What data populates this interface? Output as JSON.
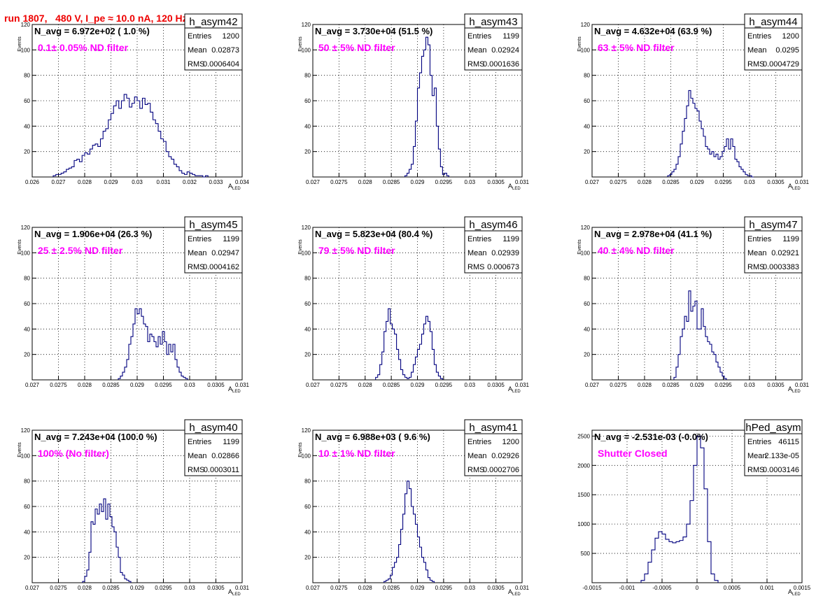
{
  "page": {
    "title": "run 1807,   480 V, I_pe ≈ 10.0 nA, 120 Hz"
  },
  "colors": {
    "histogram": "#00007f",
    "annotation": "#ff00ff",
    "title": "#ee0000",
    "grid": "#000000"
  },
  "chart_data": [
    {
      "type": "histogram",
      "name": "h_asym42",
      "navg": "N_avg = 6.972e+02 ( 1.0 %)",
      "filter": "0.1± 0.05% ND filter",
      "stats": [
        [
          "Entries",
          "1200"
        ],
        [
          "Mean",
          "0.02873"
        ],
        [
          "RMS",
          "0.0006404"
        ]
      ],
      "xlabel": "A",
      "xlabel_sub": "LED",
      "ylabel": "Events",
      "xlim": [
        0.026,
        0.034
      ],
      "ylim": [
        0,
        120
      ],
      "xticks": [
        [
          "0.026",
          0.026
        ],
        [
          "0.027",
          0.027
        ],
        [
          "0.028",
          0.028
        ],
        [
          "0.029",
          0.029
        ],
        [
          "0.03",
          0.03
        ],
        [
          "0.031",
          0.031
        ],
        [
          "0.032",
          0.032
        ],
        [
          "0.033",
          0.033
        ],
        [
          "0.034",
          0.034
        ]
      ],
      "yticks": [
        20,
        40,
        60,
        80,
        100,
        120
      ],
      "bins_x0": 0.0268,
      "bin_w": 0.0001,
      "values": [
        1,
        2,
        2,
        3,
        4,
        6,
        7,
        8,
        13,
        14,
        12,
        17,
        19,
        18,
        22,
        25,
        26,
        24,
        30,
        36,
        38,
        45,
        50,
        56,
        60,
        54,
        60,
        65,
        62,
        55,
        58,
        63,
        60,
        54,
        62,
        57,
        58,
        51,
        45,
        42,
        36,
        30,
        28,
        20,
        16,
        14,
        10,
        8,
        5,
        3,
        2,
        4,
        3,
        2,
        1,
        1,
        1,
        0,
        1
      ]
    },
    {
      "type": "histogram",
      "name": "h_asym43",
      "navg": "N_avg = 3.730e+04 (51.5 %)",
      "filter": "50 ± 5% ND filter",
      "stats": [
        [
          "Entries",
          "1199"
        ],
        [
          "Mean",
          "0.02924"
        ],
        [
          "RMS",
          "0.0001636"
        ]
      ],
      "xlabel": "A",
      "xlabel_sub": "LED",
      "ylabel": "Events",
      "xlim": [
        0.027,
        0.031
      ],
      "ylim": [
        0,
        120
      ],
      "xticks": [
        [
          "0.027",
          0.027
        ],
        [
          "0.0275",
          0.0275
        ],
        [
          "0.028",
          0.028
        ],
        [
          "0.0285",
          0.0285
        ],
        [
          "0.029",
          0.029
        ],
        [
          "0.0295",
          0.0295
        ],
        [
          "0.03",
          0.03
        ],
        [
          "0.0305",
          0.0305
        ],
        [
          "0.031",
          0.031
        ]
      ],
      "yticks": [
        20,
        40,
        60,
        80,
        100,
        120
      ],
      "bins_x0": 0.02876,
      "bin_w": 4e-05,
      "values": [
        1,
        3,
        6,
        10,
        24,
        44,
        70,
        82,
        95,
        100,
        110,
        104,
        80,
        64,
        70,
        40,
        22,
        8,
        2,
        3,
        1
      ]
    },
    {
      "type": "histogram",
      "name": "h_asym44",
      "navg": "N_avg = 4.632e+04 (63.9 %)",
      "filter": "63 ± 5% ND filter",
      "stats": [
        [
          "Entries",
          "1200"
        ],
        [
          "Mean",
          "0.0295"
        ],
        [
          "RMS",
          "0.0004729"
        ]
      ],
      "xlabel": "A",
      "xlabel_sub": "LED",
      "ylabel": "Events",
      "xlim": [
        0.027,
        0.031
      ],
      "ylim": [
        0,
        120
      ],
      "xticks": [
        [
          "0.027",
          0.027
        ],
        [
          "0.0275",
          0.0275
        ],
        [
          "0.028",
          0.028
        ],
        [
          "0.0285",
          0.0285
        ],
        [
          "0.029",
          0.029
        ],
        [
          "0.0295",
          0.0295
        ],
        [
          "0.03",
          0.03
        ],
        [
          "0.0305",
          0.0305
        ],
        [
          "0.031",
          0.031
        ]
      ],
      "yticks": [
        20,
        40,
        60,
        80,
        100,
        120
      ],
      "bins_x0": 0.02844,
      "bin_w": 4e-05,
      "values": [
        1,
        2,
        4,
        6,
        10,
        16,
        26,
        36,
        46,
        56,
        68,
        62,
        58,
        54,
        52,
        44,
        38,
        32,
        24,
        22,
        18,
        20,
        16,
        18,
        14,
        16,
        20,
        24,
        30,
        22,
        30,
        24,
        14,
        12,
        8,
        6,
        4,
        2,
        1,
        1,
        0
      ]
    },
    {
      "type": "histogram",
      "name": "h_asym45",
      "navg": "N_avg = 1.906e+04 (26.3 %)",
      "filter": "25 ± 2.5% ND filter",
      "stats": [
        [
          "Entries",
          "1199"
        ],
        [
          "Mean",
          "0.02947"
        ],
        [
          "RMS",
          "0.0004162"
        ]
      ],
      "xlabel": "A",
      "xlabel_sub": "LED",
      "ylabel": "Events",
      "xlim": [
        0.027,
        0.031
      ],
      "ylim": [
        0,
        120
      ],
      "xticks": [
        [
          "0.027",
          0.027
        ],
        [
          "0.0275",
          0.0275
        ],
        [
          "0.028",
          0.028
        ],
        [
          "0.0285",
          0.0285
        ],
        [
          "0.029",
          0.029
        ],
        [
          "0.0295",
          0.0295
        ],
        [
          "0.03",
          0.03
        ],
        [
          "0.0305",
          0.0305
        ],
        [
          "0.031",
          0.031
        ]
      ],
      "yticks": [
        20,
        40,
        60,
        80,
        100,
        120
      ],
      "bins_x0": 0.02864,
      "bin_w": 4e-05,
      "values": [
        1,
        3,
        6,
        10,
        16,
        28,
        34,
        44,
        56,
        52,
        56,
        50,
        44,
        42,
        30,
        36,
        34,
        30,
        26,
        34,
        28,
        38,
        30,
        20,
        28,
        22,
        28,
        16,
        10,
        6,
        3,
        2,
        1
      ]
    },
    {
      "type": "histogram",
      "name": "h_asym46",
      "navg": "N_avg = 5.823e+04 (80.4 %)",
      "filter": "79 ± 5% ND filter",
      "stats": [
        [
          "Entries",
          "1199"
        ],
        [
          "Mean",
          "0.02939"
        ],
        [
          "RMS",
          "0.000673"
        ]
      ],
      "xlabel": "A",
      "xlabel_sub": "LED",
      "ylabel": "Events",
      "xlim": [
        0.027,
        0.031
      ],
      "ylim": [
        0,
        120
      ],
      "xticks": [
        [
          "0.027",
          0.027
        ],
        [
          "0.0275",
          0.0275
        ],
        [
          "0.028",
          0.028
        ],
        [
          "0.0285",
          0.0285
        ],
        [
          "0.029",
          0.029
        ],
        [
          "0.0295",
          0.0295
        ],
        [
          "0.03",
          0.03
        ],
        [
          "0.0305",
          0.0305
        ],
        [
          "0.031",
          0.031
        ]
      ],
      "yticks": [
        20,
        40,
        60,
        80,
        100,
        120
      ],
      "bins_x0": 0.0282,
      "bin_w": 4e-05,
      "values": [
        2,
        4,
        12,
        22,
        38,
        46,
        56,
        44,
        40,
        36,
        24,
        16,
        8,
        4,
        2,
        1,
        2,
        6,
        12,
        18,
        24,
        28,
        36,
        44,
        50,
        46,
        38,
        24,
        12,
        6,
        3,
        1
      ]
    },
    {
      "type": "histogram",
      "name": "h_asym47",
      "navg": "N_avg = 2.978e+04 (41.1 %)",
      "filter": "40 ± 4% ND filter",
      "stats": [
        [
          "Entries",
          "1199"
        ],
        [
          "Mean",
          "0.02921"
        ],
        [
          "RMS",
          "0.0003383"
        ]
      ],
      "xlabel": "A",
      "xlabel_sub": "LED",
      "ylabel": "Events",
      "xlim": [
        0.027,
        0.031
      ],
      "ylim": [
        0,
        120
      ],
      "xticks": [
        [
          "0.027",
          0.027
        ],
        [
          "0.0275",
          0.0275
        ],
        [
          "0.028",
          0.028
        ],
        [
          "0.0285",
          0.0285
        ],
        [
          "0.029",
          0.029
        ],
        [
          "0.0295",
          0.0295
        ],
        [
          "0.03",
          0.03
        ],
        [
          "0.0305",
          0.0305
        ],
        [
          "0.031",
          0.031
        ]
      ],
      "yticks": [
        20,
        40,
        60,
        80,
        100,
        120
      ],
      "bins_x0": 0.02856,
      "bin_w": 4e-05,
      "values": [
        2,
        10,
        20,
        34,
        40,
        50,
        46,
        70,
        54,
        58,
        62,
        40,
        40,
        56,
        42,
        34,
        30,
        28,
        22,
        20,
        14,
        10,
        6,
        3,
        1
      ]
    },
    {
      "type": "histogram",
      "name": "h_asym40",
      "navg": "N_avg = 7.243e+04 (100.0 %)",
      "filter": "100% (No filter)",
      "stats": [
        [
          "Entries",
          "1199"
        ],
        [
          "Mean",
          "0.02866"
        ],
        [
          "RMS",
          "0.0003011"
        ]
      ],
      "xlabel": "A",
      "xlabel_sub": "LED",
      "ylabel": "Events",
      "xlim": [
        0.027,
        0.031
      ],
      "ylim": [
        0,
        120
      ],
      "xticks": [
        [
          "0.027",
          0.027
        ],
        [
          "0.0275",
          0.0275
        ],
        [
          "0.028",
          0.028
        ],
        [
          "0.0285",
          0.0285
        ],
        [
          "0.029",
          0.029
        ],
        [
          "0.0295",
          0.0295
        ],
        [
          "0.03",
          0.03
        ],
        [
          "0.0305",
          0.0305
        ],
        [
          "0.031",
          0.031
        ]
      ],
      "yticks": [
        20,
        40,
        60,
        80,
        100,
        120
      ],
      "bins_x0": 0.02796,
      "bin_w": 4e-05,
      "values": [
        1,
        5,
        10,
        24,
        48,
        46,
        58,
        54,
        62,
        56,
        66,
        50,
        62,
        52,
        44,
        40,
        28,
        20,
        8,
        6,
        3,
        2,
        1
      ]
    },
    {
      "type": "histogram",
      "name": "h_asym41",
      "navg": "N_avg = 6.988e+03 ( 9.6 %)",
      "filter": "10 ± 1% ND filter",
      "stats": [
        [
          "Entries",
          "1200"
        ],
        [
          "Mean",
          "0.02926"
        ],
        [
          "RMS",
          "0.0002706"
        ]
      ],
      "xlabel": "A",
      "xlabel_sub": "LED",
      "ylabel": "Events",
      "xlim": [
        0.027,
        0.031
      ],
      "ylim": [
        0,
        120
      ],
      "xticks": [
        [
          "0.027",
          0.027
        ],
        [
          "0.0275",
          0.0275
        ],
        [
          "0.028",
          0.028
        ],
        [
          "0.0285",
          0.0285
        ],
        [
          "0.029",
          0.029
        ],
        [
          "0.0295",
          0.0295
        ],
        [
          "0.03",
          0.03
        ],
        [
          "0.0305",
          0.0305
        ],
        [
          "0.031",
          0.031
        ]
      ],
      "yticks": [
        20,
        40,
        60,
        80,
        100,
        120
      ],
      "bins_x0": 0.02836,
      "bin_w": 4e-05,
      "values": [
        1,
        2,
        3,
        6,
        12,
        16,
        20,
        30,
        42,
        54,
        70,
        80,
        74,
        60,
        54,
        46,
        36,
        28,
        20,
        16,
        10,
        4,
        2,
        1
      ]
    },
    {
      "type": "histogram",
      "name": "hPed_asym",
      "navg": "N_avg = -2.531e-03 (-0.0%)",
      "filter": "Shutter Closed",
      "stats": [
        [
          "Entries",
          "46115"
        ],
        [
          "Mean",
          "2.133e-05"
        ],
        [
          "RMS",
          "0.0003146"
        ]
      ],
      "xlabel": "A",
      "xlabel_sub": "LED",
      "ylabel": "",
      "xlim": [
        -0.0015,
        0.0015
      ],
      "ylim": [
        0,
        2600
      ],
      "xticks": [
        [
          "-0.0015",
          -0.0015
        ],
        [
          "-0.001",
          -0.001
        ],
        [
          "-0.0005",
          -0.0005
        ],
        [
          "0",
          0
        ],
        [
          "0.0005",
          0.0005
        ],
        [
          "0.001",
          0.001
        ],
        [
          "0.0015",
          0.0015
        ]
      ],
      "yticks": [
        500,
        1000,
        1500,
        2000,
        2500
      ],
      "bins_x0": -0.0008,
      "bin_w": 5e-05,
      "values": [
        40,
        150,
        350,
        560,
        760,
        870,
        830,
        740,
        700,
        680,
        700,
        720,
        780,
        1000,
        1400,
        2000,
        2500,
        2300,
        1600,
        700,
        150,
        40
      ]
    }
  ]
}
